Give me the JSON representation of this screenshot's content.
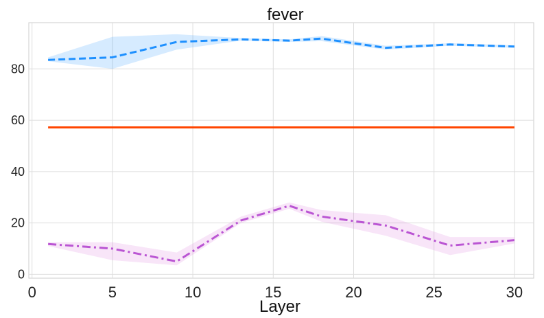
{
  "chart_data": {
    "type": "line",
    "title": "fever",
    "xlabel": "Layer",
    "ylabel": "",
    "xlim": [
      -0.2,
      31.2
    ],
    "ylim": [
      -1.5,
      98
    ],
    "xticks": [
      0,
      5,
      10,
      15,
      20,
      25,
      30
    ],
    "yticks": [
      0,
      20,
      40,
      60,
      80
    ],
    "grid": true,
    "series": [
      {
        "name": "blue-dashed",
        "color": "#1E90FF",
        "band_color": "#1E90FF",
        "style": "dashed",
        "x": [
          1,
          5,
          9,
          13,
          16,
          18,
          22,
          26,
          30
        ],
        "y": [
          83.5,
          84.5,
          90.5,
          91.5,
          91.0,
          91.8,
          88.2,
          89.5,
          88.7
        ],
        "lower": [
          83.0,
          80.0,
          87.5,
          91.0,
          90.5,
          90.8,
          87.5,
          89.0,
          88.2
        ],
        "upper": [
          84.5,
          92.5,
          93.5,
          92.0,
          91.5,
          92.8,
          89.0,
          90.0,
          89.2
        ]
      },
      {
        "name": "orange-solid",
        "color": "#FF4500",
        "style": "solid",
        "x": [
          1,
          30
        ],
        "y": [
          57.2,
          57.2
        ]
      },
      {
        "name": "purple-dashdot",
        "color": "#BA55D3",
        "band_color": "#DA70D6",
        "style": "dashdot",
        "x": [
          1,
          5,
          9,
          13,
          16,
          18,
          22,
          26,
          30
        ],
        "y": [
          11.8,
          10.0,
          5.0,
          21.0,
          26.7,
          22.5,
          19.0,
          11.2,
          13.3
        ],
        "lower": [
          11.0,
          5.5,
          3.5,
          20.0,
          25.5,
          20.5,
          15.0,
          7.5,
          12.0
        ],
        "upper": [
          12.5,
          12.5,
          8.5,
          22.5,
          28.0,
          25.0,
          23.0,
          14.5,
          14.5
        ]
      }
    ]
  }
}
